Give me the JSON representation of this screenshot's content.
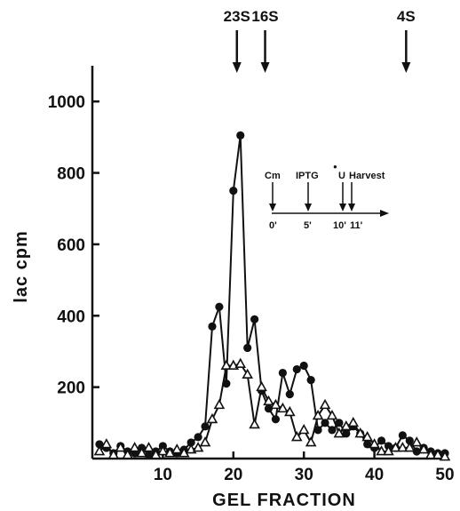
{
  "chart_data": {
    "type": "line",
    "title": "",
    "xlabel": "GEL FRACTION",
    "ylabel": "lac cpm",
    "xlim": [
      0,
      50
    ],
    "ylim": [
      0,
      1100
    ],
    "xticks": [
      10,
      20,
      30,
      40,
      50
    ],
    "yticks": [
      200,
      400,
      600,
      800,
      1000
    ],
    "x": [
      1,
      2,
      3,
      4,
      5,
      6,
      7,
      8,
      9,
      10,
      11,
      12,
      13,
      14,
      15,
      16,
      17,
      18,
      19,
      20,
      21,
      22,
      23,
      24,
      25,
      26,
      27,
      28,
      29,
      30,
      31,
      32,
      33,
      34,
      35,
      36,
      37,
      38,
      39,
      40,
      41,
      42,
      43,
      44,
      45,
      46,
      47,
      48,
      49,
      50
    ],
    "series": [
      {
        "marker": "filled-circle",
        "color": "#111111",
        "values": [
          40,
          30,
          15,
          35,
          20,
          15,
          30,
          10,
          20,
          35,
          20,
          15,
          25,
          45,
          60,
          90,
          370,
          425,
          210,
          750,
          905,
          310,
          390,
          190,
          140,
          110,
          240,
          180,
          250,
          260,
          220,
          80,
          100,
          80,
          100,
          70,
          90,
          70,
          40,
          30,
          50,
          35,
          30,
          65,
          50,
          20,
          30,
          20,
          15,
          15
        ]
      },
      {
        "marker": "open-triangle",
        "color": "#111111",
        "values": [
          20,
          40,
          10,
          30,
          10,
          30,
          15,
          30,
          10,
          20,
          15,
          25,
          15,
          25,
          30,
          45,
          110,
          150,
          260,
          260,
          265,
          235,
          95,
          200,
          160,
          150,
          140,
          130,
          60,
          80,
          45,
          120,
          150,
          120,
          70,
          90,
          100,
          70,
          60,
          40,
          20,
          20,
          30,
          30,
          30,
          45,
          25,
          10,
          10,
          5
        ]
      }
    ],
    "markers": [
      {
        "label": "23S",
        "x": 20.5
      },
      {
        "label": "16S",
        "x": 24.5
      },
      {
        "label": "4S",
        "x": 44.5
      }
    ],
    "inset": {
      "labels": [
        "Cm",
        "IPTG",
        "U",
        "Harvest"
      ],
      "times": [
        "0'",
        "5'",
        "10'",
        "11'"
      ],
      "superscript": "●"
    }
  }
}
